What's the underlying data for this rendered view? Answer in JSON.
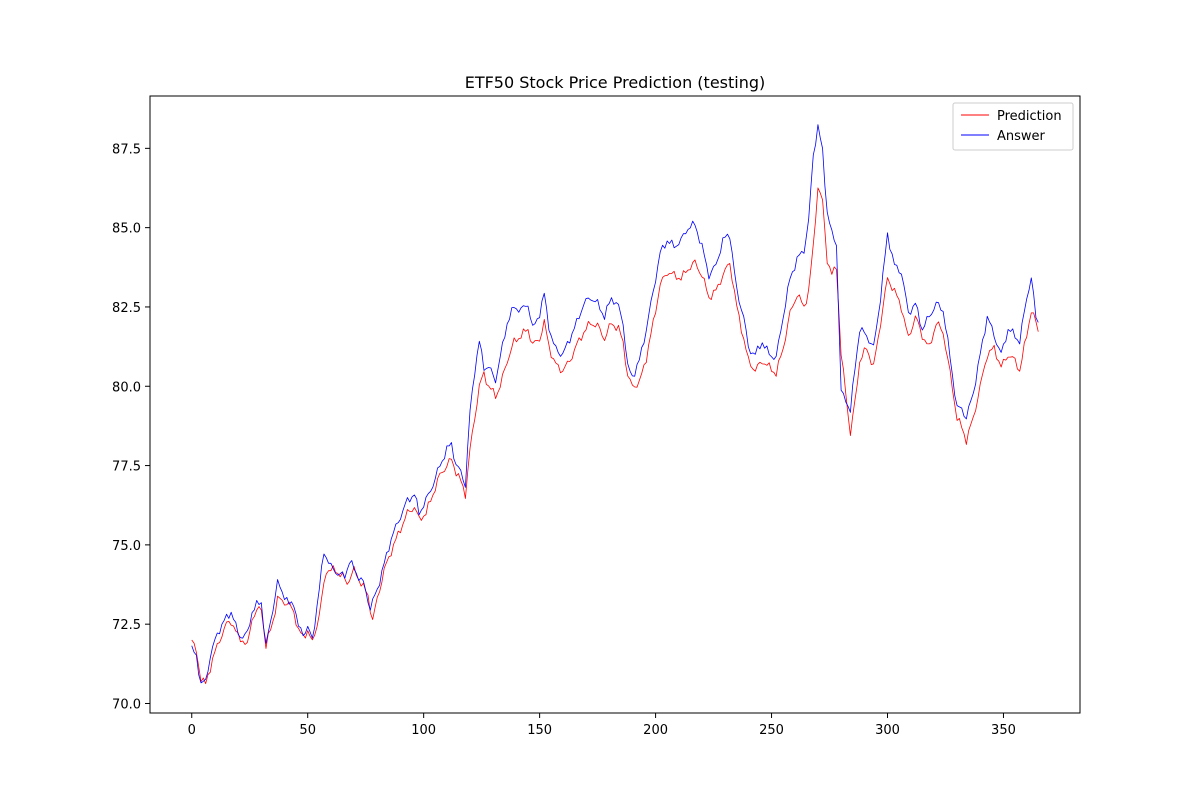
{
  "chart_data": {
    "type": "line",
    "title": "ETF50 Stock Price Prediction (testing)",
    "xlabel": "",
    "ylabel": "",
    "xlim": [
      -18,
      383
    ],
    "ylim": [
      69.7,
      89.15
    ],
    "x_ticks": [
      0,
      50,
      100,
      150,
      200,
      250,
      300,
      350
    ],
    "y_ticks": [
      70.0,
      72.5,
      75.0,
      77.5,
      80.0,
      82.5,
      85.0,
      87.5
    ],
    "x_tick_labels": [
      "0",
      "50",
      "100",
      "150",
      "200",
      "250",
      "300",
      "350"
    ],
    "y_tick_labels": [
      "70.0",
      "72.5",
      "75.0",
      "77.5",
      "80.0",
      "82.5",
      "85.0",
      "87.5"
    ],
    "grid": false,
    "legend_position": "top-right",
    "x_count": 365,
    "series": [
      {
        "name": "Prediction",
        "color": "#ff0000",
        "keypoints": [
          [
            0,
            72.0
          ],
          [
            2,
            71.6
          ],
          [
            4,
            70.8
          ],
          [
            6,
            70.6
          ],
          [
            9,
            71.4
          ],
          [
            12,
            72.0
          ],
          [
            15,
            72.5
          ],
          [
            17,
            72.6
          ],
          [
            20,
            72.1
          ],
          [
            22,
            72.0
          ],
          [
            24,
            71.8
          ],
          [
            26,
            72.7
          ],
          [
            28,
            72.9
          ],
          [
            30,
            73.0
          ],
          [
            32,
            71.8
          ],
          [
            35,
            72.6
          ],
          [
            37,
            73.3
          ],
          [
            40,
            73.2
          ],
          [
            42,
            73.1
          ],
          [
            44,
            72.9
          ],
          [
            46,
            72.3
          ],
          [
            48,
            72.1
          ],
          [
            50,
            72.3
          ],
          [
            52,
            71.9
          ],
          [
            55,
            72.8
          ],
          [
            58,
            74.2
          ],
          [
            62,
            74.2
          ],
          [
            65,
            74.0
          ],
          [
            67,
            73.8
          ],
          [
            70,
            74.2
          ],
          [
            73,
            73.8
          ],
          [
            76,
            73.4
          ],
          [
            78,
            72.6
          ],
          [
            80,
            73.3
          ],
          [
            83,
            74.2
          ],
          [
            86,
            74.8
          ],
          [
            90,
            75.5
          ],
          [
            93,
            76.0
          ],
          [
            96,
            76.2
          ],
          [
            98,
            75.8
          ],
          [
            101,
            76.0
          ],
          [
            104,
            76.6
          ],
          [
            107,
            77.2
          ],
          [
            110,
            77.5
          ],
          [
            112,
            77.7
          ],
          [
            114,
            77.3
          ],
          [
            116,
            77.0
          ],
          [
            118,
            76.6
          ],
          [
            120,
            78.0
          ],
          [
            122,
            79.0
          ],
          [
            124,
            80.0
          ],
          [
            126,
            80.4
          ],
          [
            128,
            80.0
          ],
          [
            131,
            79.7
          ],
          [
            133,
            80.0
          ],
          [
            136,
            80.8
          ],
          [
            139,
            81.4
          ],
          [
            142,
            81.6
          ],
          [
            145,
            81.8
          ],
          [
            147,
            81.3
          ],
          [
            150,
            81.5
          ],
          [
            152,
            82.0
          ],
          [
            154,
            81.3
          ],
          [
            156,
            80.8
          ],
          [
            158,
            80.6
          ],
          [
            160,
            80.5
          ],
          [
            163,
            80.8
          ],
          [
            166,
            81.3
          ],
          [
            169,
            81.7
          ],
          [
            172,
            82.0
          ],
          [
            175,
            81.9
          ],
          [
            178,
            81.5
          ],
          [
            181,
            82.0
          ],
          [
            184,
            81.8
          ],
          [
            186,
            81.4
          ],
          [
            188,
            80.3
          ],
          [
            190,
            80.0
          ],
          [
            193,
            80.1
          ],
          [
            196,
            80.9
          ],
          [
            199,
            82.0
          ],
          [
            202,
            83.2
          ],
          [
            205,
            83.6
          ],
          [
            208,
            83.5
          ],
          [
            211,
            83.4
          ],
          [
            214,
            83.7
          ],
          [
            217,
            83.9
          ],
          [
            220,
            83.5
          ],
          [
            223,
            82.8
          ],
          [
            226,
            83.0
          ],
          [
            229,
            83.5
          ],
          [
            232,
            83.9
          ],
          [
            235,
            82.5
          ],
          [
            238,
            81.5
          ],
          [
            240,
            80.8
          ],
          [
            243,
            80.5
          ],
          [
            246,
            80.8
          ],
          [
            249,
            80.6
          ],
          [
            252,
            80.4
          ],
          [
            255,
            81.2
          ],
          [
            258,
            82.3
          ],
          [
            261,
            82.9
          ],
          [
            264,
            82.5
          ],
          [
            266,
            83.0
          ],
          [
            268,
            84.4
          ],
          [
            270,
            86.3
          ],
          [
            272,
            85.8
          ],
          [
            274,
            84.0
          ],
          [
            276,
            83.5
          ],
          [
            278,
            83.8
          ],
          [
            280,
            81.0
          ],
          [
            282,
            79.8
          ],
          [
            284,
            78.5
          ],
          [
            286,
            79.5
          ],
          [
            288,
            80.8
          ],
          [
            291,
            81.2
          ],
          [
            294,
            80.6
          ],
          [
            297,
            82.0
          ],
          [
            300,
            83.4
          ],
          [
            303,
            83.0
          ],
          [
            306,
            82.5
          ],
          [
            309,
            81.5
          ],
          [
            312,
            82.2
          ],
          [
            315,
            81.6
          ],
          [
            318,
            81.2
          ],
          [
            321,
            82.0
          ],
          [
            324,
            81.7
          ],
          [
            327,
            80.4
          ],
          [
            330,
            79.0
          ],
          [
            332,
            78.7
          ],
          [
            334,
            78.3
          ],
          [
            337,
            79.0
          ],
          [
            340,
            80.0
          ],
          [
            343,
            81.0
          ],
          [
            346,
            81.2
          ],
          [
            349,
            80.6
          ],
          [
            352,
            81.0
          ],
          [
            355,
            80.8
          ],
          [
            357,
            80.5
          ],
          [
            360,
            81.6
          ],
          [
            362,
            82.4
          ],
          [
            364,
            82.0
          ],
          [
            366,
            81.5
          ],
          [
            368,
            81.0
          ]
        ]
      },
      {
        "name": "Answer",
        "color": "#0000ff",
        "keypoints": [
          [
            0,
            71.7
          ],
          [
            2,
            71.5
          ],
          [
            4,
            70.6
          ],
          [
            6,
            70.7
          ],
          [
            8,
            71.5
          ],
          [
            11,
            72.2
          ],
          [
            14,
            72.6
          ],
          [
            17,
            72.9
          ],
          [
            20,
            72.2
          ],
          [
            22,
            72.1
          ],
          [
            24,
            72.2
          ],
          [
            26,
            72.9
          ],
          [
            28,
            73.1
          ],
          [
            30,
            73.2
          ],
          [
            32,
            71.8
          ],
          [
            35,
            73.0
          ],
          [
            37,
            73.8
          ],
          [
            40,
            73.4
          ],
          [
            42,
            73.1
          ],
          [
            44,
            73.2
          ],
          [
            46,
            72.4
          ],
          [
            48,
            72.2
          ],
          [
            50,
            72.4
          ],
          [
            52,
            72.0
          ],
          [
            55,
            73.6
          ],
          [
            57,
            74.8
          ],
          [
            60,
            74.3
          ],
          [
            63,
            74.1
          ],
          [
            66,
            74.0
          ],
          [
            68,
            74.5
          ],
          [
            71,
            74.1
          ],
          [
            74,
            73.8
          ],
          [
            77,
            73.0
          ],
          [
            80,
            73.6
          ],
          [
            83,
            74.4
          ],
          [
            86,
            75.2
          ],
          [
            90,
            75.9
          ],
          [
            93,
            76.4
          ],
          [
            96,
            76.6
          ],
          [
            98,
            76.0
          ],
          [
            101,
            76.4
          ],
          [
            104,
            76.9
          ],
          [
            107,
            77.5
          ],
          [
            110,
            78.0
          ],
          [
            112,
            78.2
          ],
          [
            114,
            77.5
          ],
          [
            116,
            77.3
          ],
          [
            118,
            76.9
          ],
          [
            120,
            79.2
          ],
          [
            122,
            80.5
          ],
          [
            124,
            81.4
          ],
          [
            126,
            80.6
          ],
          [
            128,
            80.6
          ],
          [
            131,
            80.2
          ],
          [
            133,
            80.9
          ],
          [
            136,
            82.0
          ],
          [
            139,
            82.5
          ],
          [
            142,
            82.4
          ],
          [
            145,
            82.6
          ],
          [
            147,
            81.8
          ],
          [
            150,
            82.3
          ],
          [
            152,
            82.9
          ],
          [
            154,
            81.9
          ],
          [
            156,
            81.3
          ],
          [
            158,
            81.1
          ],
          [
            160,
            81.0
          ],
          [
            163,
            81.5
          ],
          [
            166,
            82.0
          ],
          [
            169,
            82.6
          ],
          [
            172,
            82.8
          ],
          [
            175,
            82.6
          ],
          [
            178,
            82.2
          ],
          [
            181,
            82.8
          ],
          [
            184,
            82.5
          ],
          [
            186,
            82.0
          ],
          [
            188,
            80.6
          ],
          [
            190,
            80.3
          ],
          [
            193,
            80.8
          ],
          [
            196,
            81.8
          ],
          [
            199,
            83.0
          ],
          [
            202,
            84.2
          ],
          [
            205,
            84.6
          ],
          [
            208,
            84.4
          ],
          [
            211,
            84.6
          ],
          [
            214,
            85.0
          ],
          [
            217,
            85.1
          ],
          [
            220,
            84.4
          ],
          [
            223,
            83.5
          ],
          [
            226,
            83.8
          ],
          [
            229,
            84.6
          ],
          [
            232,
            84.8
          ],
          [
            235,
            83.0
          ],
          [
            238,
            82.2
          ],
          [
            240,
            81.2
          ],
          [
            243,
            81.0
          ],
          [
            246,
            81.4
          ],
          [
            249,
            81.0
          ],
          [
            252,
            80.9
          ],
          [
            255,
            82.2
          ],
          [
            258,
            83.4
          ],
          [
            261,
            84.0
          ],
          [
            264,
            84.3
          ],
          [
            266,
            85.2
          ],
          [
            268,
            87.3
          ],
          [
            270,
            88.2
          ],
          [
            272,
            87.4
          ],
          [
            274,
            85.5
          ],
          [
            276,
            84.8
          ],
          [
            278,
            84.5
          ],
          [
            280,
            79.8
          ],
          [
            282,
            79.6
          ],
          [
            284,
            79.2
          ],
          [
            286,
            80.6
          ],
          [
            288,
            81.8
          ],
          [
            291,
            81.6
          ],
          [
            294,
            81.2
          ],
          [
            297,
            82.8
          ],
          [
            300,
            84.8
          ],
          [
            303,
            83.8
          ],
          [
            306,
            83.6
          ],
          [
            309,
            82.3
          ],
          [
            312,
            82.6
          ],
          [
            315,
            81.8
          ],
          [
            318,
            82.2
          ],
          [
            321,
            82.6
          ],
          [
            324,
            82.4
          ],
          [
            327,
            80.9
          ],
          [
            330,
            79.3
          ],
          [
            332,
            79.3
          ],
          [
            334,
            79.0
          ],
          [
            337,
            79.8
          ],
          [
            340,
            81.0
          ],
          [
            343,
            82.2
          ],
          [
            346,
            81.6
          ],
          [
            349,
            81.0
          ],
          [
            352,
            81.8
          ],
          [
            355,
            81.6
          ],
          [
            357,
            81.4
          ],
          [
            360,
            82.8
          ],
          [
            362,
            83.4
          ],
          [
            364,
            82.2
          ],
          [
            366,
            81.9
          ],
          [
            368,
            80.6
          ]
        ]
      }
    ]
  }
}
